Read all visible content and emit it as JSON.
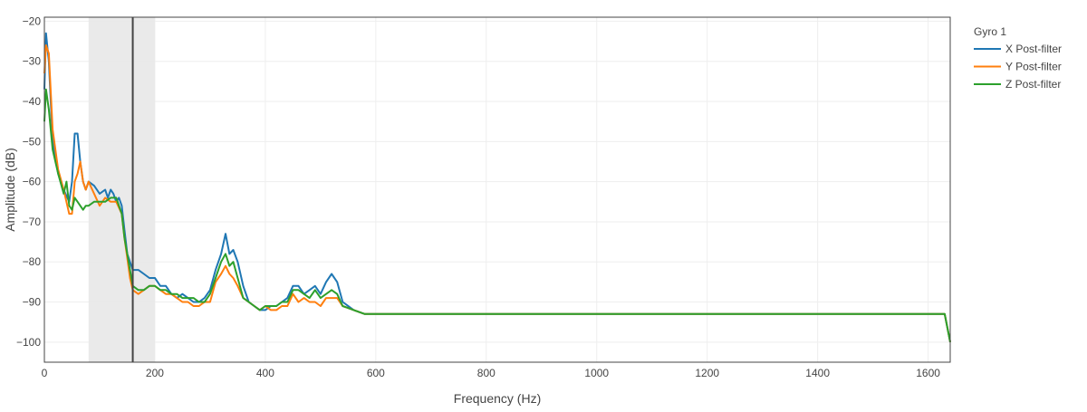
{
  "chart_data": {
    "type": "line",
    "title": "",
    "xlabel": "Frequency (Hz)",
    "ylabel": "Amplitude (dB)",
    "xlim": [
      0,
      1640
    ],
    "ylim": [
      -105,
      -19
    ],
    "grid": true,
    "x_ticks": [
      0,
      200,
      400,
      600,
      800,
      1000,
      1200,
      1400,
      1600
    ],
    "y_ticks": [
      -100,
      -90,
      -80,
      -70,
      -60,
      -50,
      -40,
      -30,
      -20
    ],
    "legend": {
      "title": "Gyro 1",
      "position": "right"
    },
    "shaded_region": {
      "x0": 80,
      "x1": 200,
      "color": "#e8e8e8"
    },
    "marker_line": {
      "x": 160,
      "color": "#444444"
    },
    "series": [
      {
        "name": "X Post-filter",
        "color": "#1f77b4",
        "points": [
          [
            0,
            -37
          ],
          [
            3,
            -23
          ],
          [
            8,
            -30
          ],
          [
            15,
            -50
          ],
          [
            25,
            -58
          ],
          [
            35,
            -62
          ],
          [
            45,
            -65
          ],
          [
            50,
            -60
          ],
          [
            55,
            -48
          ],
          [
            60,
            -48
          ],
          [
            65,
            -55
          ],
          [
            70,
            -60
          ],
          [
            75,
            -62
          ],
          [
            80,
            -60
          ],
          [
            90,
            -61
          ],
          [
            100,
            -63
          ],
          [
            110,
            -62
          ],
          [
            115,
            -64
          ],
          [
            120,
            -62
          ],
          [
            125,
            -63
          ],
          [
            130,
            -65
          ],
          [
            135,
            -64
          ],
          [
            140,
            -66
          ],
          [
            145,
            -72
          ],
          [
            150,
            -78
          ],
          [
            155,
            -80
          ],
          [
            160,
            -82
          ],
          [
            170,
            -82
          ],
          [
            180,
            -83
          ],
          [
            190,
            -84
          ],
          [
            200,
            -84
          ],
          [
            210,
            -86
          ],
          [
            220,
            -86
          ],
          [
            230,
            -88
          ],
          [
            240,
            -89
          ],
          [
            250,
            -88
          ],
          [
            260,
            -89
          ],
          [
            270,
            -90
          ],
          [
            280,
            -90
          ],
          [
            290,
            -89
          ],
          [
            300,
            -87
          ],
          [
            310,
            -82
          ],
          [
            320,
            -78
          ],
          [
            328,
            -73
          ],
          [
            335,
            -78
          ],
          [
            342,
            -77
          ],
          [
            350,
            -80
          ],
          [
            360,
            -86
          ],
          [
            370,
            -90
          ],
          [
            380,
            -91
          ],
          [
            390,
            -92
          ],
          [
            400,
            -92
          ],
          [
            410,
            -91
          ],
          [
            420,
            -91
          ],
          [
            430,
            -90
          ],
          [
            440,
            -89
          ],
          [
            450,
            -86
          ],
          [
            460,
            -86
          ],
          [
            470,
            -88
          ],
          [
            480,
            -87
          ],
          [
            490,
            -86
          ],
          [
            500,
            -88
          ],
          [
            510,
            -85
          ],
          [
            520,
            -83
          ],
          [
            530,
            -85
          ],
          [
            540,
            -90
          ],
          [
            560,
            -92
          ],
          [
            580,
            -93
          ],
          [
            600,
            -93
          ],
          [
            650,
            -93
          ],
          [
            700,
            -93
          ],
          [
            750,
            -93
          ],
          [
            800,
            -93
          ],
          [
            850,
            -93
          ],
          [
            900,
            -93
          ],
          [
            950,
            -93
          ],
          [
            1000,
            -93
          ],
          [
            1050,
            -93
          ],
          [
            1100,
            -93
          ],
          [
            1150,
            -93
          ],
          [
            1200,
            -93
          ],
          [
            1250,
            -93
          ],
          [
            1300,
            -93
          ],
          [
            1350,
            -93
          ],
          [
            1400,
            -93
          ],
          [
            1450,
            -93
          ],
          [
            1500,
            -93
          ],
          [
            1550,
            -93
          ],
          [
            1600,
            -93
          ],
          [
            1630,
            -93
          ],
          [
            1640,
            -100
          ]
        ]
      },
      {
        "name": "Y Post-filter",
        "color": "#ff7f0e",
        "points": [
          [
            0,
            -33
          ],
          [
            3,
            -26
          ],
          [
            8,
            -28
          ],
          [
            15,
            -47
          ],
          [
            25,
            -57
          ],
          [
            35,
            -62
          ],
          [
            45,
            -68
          ],
          [
            50,
            -68
          ],
          [
            55,
            -60
          ],
          [
            60,
            -58
          ],
          [
            65,
            -55
          ],
          [
            70,
            -60
          ],
          [
            75,
            -62
          ],
          [
            80,
            -60
          ],
          [
            90,
            -63
          ],
          [
            100,
            -66
          ],
          [
            110,
            -64
          ],
          [
            120,
            -65
          ],
          [
            130,
            -65
          ],
          [
            140,
            -68
          ],
          [
            145,
            -74
          ],
          [
            150,
            -79
          ],
          [
            155,
            -84
          ],
          [
            160,
            -87
          ],
          [
            170,
            -88
          ],
          [
            180,
            -87
          ],
          [
            190,
            -86
          ],
          [
            200,
            -86
          ],
          [
            210,
            -87
          ],
          [
            220,
            -88
          ],
          [
            230,
            -88
          ],
          [
            240,
            -89
          ],
          [
            250,
            -90
          ],
          [
            260,
            -90
          ],
          [
            270,
            -91
          ],
          [
            280,
            -91
          ],
          [
            290,
            -90
          ],
          [
            300,
            -90
          ],
          [
            310,
            -85
          ],
          [
            320,
            -83
          ],
          [
            328,
            -81
          ],
          [
            335,
            -83
          ],
          [
            342,
            -84
          ],
          [
            350,
            -86
          ],
          [
            360,
            -89
          ],
          [
            370,
            -90
          ],
          [
            380,
            -91
          ],
          [
            390,
            -92
          ],
          [
            400,
            -91
          ],
          [
            410,
            -92
          ],
          [
            420,
            -92
          ],
          [
            430,
            -91
          ],
          [
            440,
            -91
          ],
          [
            450,
            -88
          ],
          [
            460,
            -90
          ],
          [
            470,
            -89
          ],
          [
            480,
            -90
          ],
          [
            490,
            -90
          ],
          [
            500,
            -91
          ],
          [
            510,
            -89
          ],
          [
            520,
            -89
          ],
          [
            530,
            -89
          ],
          [
            540,
            -91
          ],
          [
            560,
            -92
          ],
          [
            580,
            -93
          ],
          [
            600,
            -93
          ],
          [
            650,
            -93
          ],
          [
            700,
            -93
          ],
          [
            750,
            -93
          ],
          [
            800,
            -93
          ],
          [
            850,
            -93
          ],
          [
            900,
            -93
          ],
          [
            950,
            -93
          ],
          [
            1000,
            -93
          ],
          [
            1050,
            -93
          ],
          [
            1100,
            -93
          ],
          [
            1150,
            -93
          ],
          [
            1200,
            -93
          ],
          [
            1250,
            -93
          ],
          [
            1300,
            -93
          ],
          [
            1350,
            -93
          ],
          [
            1400,
            -93
          ],
          [
            1450,
            -93
          ],
          [
            1500,
            -93
          ],
          [
            1550,
            -93
          ],
          [
            1600,
            -93
          ],
          [
            1630,
            -93
          ],
          [
            1640,
            -100
          ]
        ]
      },
      {
        "name": "Z Post-filter",
        "color": "#2ca02c",
        "points": [
          [
            0,
            -45
          ],
          [
            3,
            -37
          ],
          [
            8,
            -42
          ],
          [
            15,
            -52
          ],
          [
            25,
            -58
          ],
          [
            35,
            -63
          ],
          [
            40,
            -60
          ],
          [
            45,
            -66
          ],
          [
            50,
            -67
          ],
          [
            55,
            -64
          ],
          [
            60,
            -65
          ],
          [
            65,
            -66
          ],
          [
            70,
            -67
          ],
          [
            75,
            -66
          ],
          [
            80,
            -66
          ],
          [
            90,
            -65
          ],
          [
            100,
            -65
          ],
          [
            110,
            -65
          ],
          [
            120,
            -64
          ],
          [
            130,
            -64
          ],
          [
            140,
            -68
          ],
          [
            145,
            -74
          ],
          [
            150,
            -78
          ],
          [
            155,
            -82
          ],
          [
            160,
            -86
          ],
          [
            170,
            -87
          ],
          [
            180,
            -87
          ],
          [
            190,
            -86
          ],
          [
            200,
            -86
          ],
          [
            210,
            -87
          ],
          [
            220,
            -87
          ],
          [
            230,
            -88
          ],
          [
            240,
            -88
          ],
          [
            250,
            -89
          ],
          [
            260,
            -89
          ],
          [
            270,
            -89
          ],
          [
            280,
            -90
          ],
          [
            290,
            -90
          ],
          [
            300,
            -88
          ],
          [
            310,
            -84
          ],
          [
            320,
            -80
          ],
          [
            328,
            -78
          ],
          [
            335,
            -81
          ],
          [
            342,
            -80
          ],
          [
            350,
            -84
          ],
          [
            360,
            -89
          ],
          [
            370,
            -90
          ],
          [
            380,
            -91
          ],
          [
            390,
            -92
          ],
          [
            400,
            -91
          ],
          [
            410,
            -91
          ],
          [
            420,
            -91
          ],
          [
            430,
            -90
          ],
          [
            440,
            -90
          ],
          [
            450,
            -87
          ],
          [
            460,
            -87
          ],
          [
            470,
            -88
          ],
          [
            480,
            -89
          ],
          [
            490,
            -87
          ],
          [
            500,
            -89
          ],
          [
            510,
            -88
          ],
          [
            520,
            -87
          ],
          [
            530,
            -88
          ],
          [
            540,
            -91
          ],
          [
            560,
            -92
          ],
          [
            580,
            -93
          ],
          [
            600,
            -93
          ],
          [
            650,
            -93
          ],
          [
            700,
            -93
          ],
          [
            750,
            -93
          ],
          [
            800,
            -93
          ],
          [
            850,
            -93
          ],
          [
            900,
            -93
          ],
          [
            950,
            -93
          ],
          [
            1000,
            -93
          ],
          [
            1050,
            -93
          ],
          [
            1100,
            -93
          ],
          [
            1150,
            -93
          ],
          [
            1200,
            -93
          ],
          [
            1250,
            -93
          ],
          [
            1300,
            -93
          ],
          [
            1350,
            -93
          ],
          [
            1400,
            -93
          ],
          [
            1450,
            -93
          ],
          [
            1500,
            -93
          ],
          [
            1550,
            -93
          ],
          [
            1600,
            -93
          ],
          [
            1630,
            -93
          ],
          [
            1640,
            -100
          ]
        ]
      }
    ]
  }
}
